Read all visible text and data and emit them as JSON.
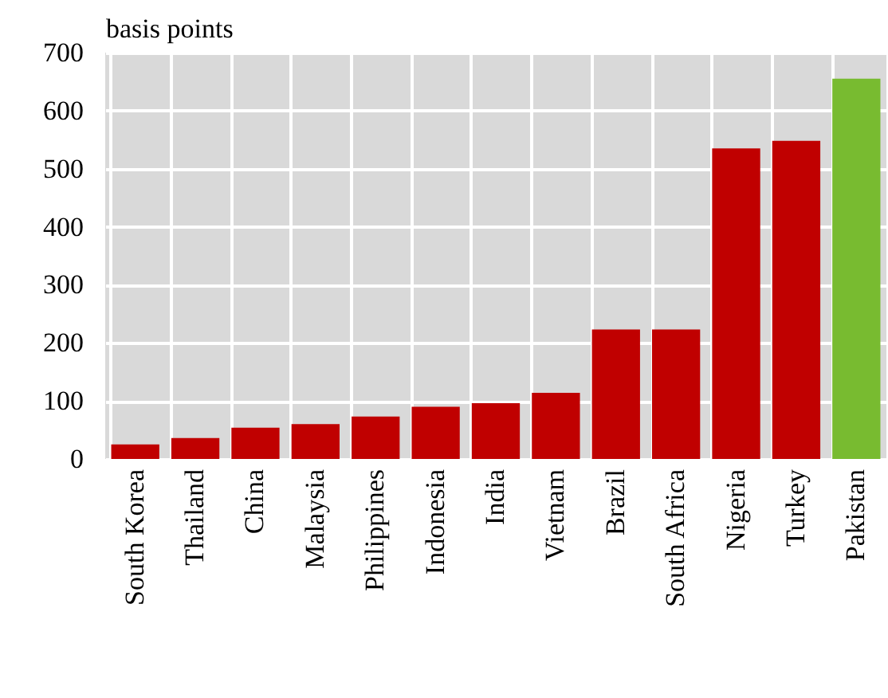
{
  "chart_data": {
    "type": "bar",
    "ylabel": "basis points",
    "categories": [
      "South Korea",
      "Thailand",
      "China",
      "Malaysia",
      "Philippines",
      "Indonesia",
      "India",
      "Vietnam",
      "Brazil",
      "South Africa",
      "Nigeria",
      "Turkey",
      "Pakistan"
    ],
    "values": [
      25,
      36,
      54,
      60,
      73,
      90,
      96,
      114,
      223,
      223,
      535,
      548,
      655
    ],
    "colors": [
      "#c00000",
      "#c00000",
      "#c00000",
      "#c00000",
      "#c00000",
      "#c00000",
      "#c00000",
      "#c00000",
      "#c00000",
      "#c00000",
      "#c00000",
      "#c00000",
      "#78bb30"
    ],
    "ylim": [
      0,
      700
    ],
    "yticks": [
      0,
      100,
      200,
      300,
      400,
      500,
      600,
      700
    ],
    "grid": true
  }
}
